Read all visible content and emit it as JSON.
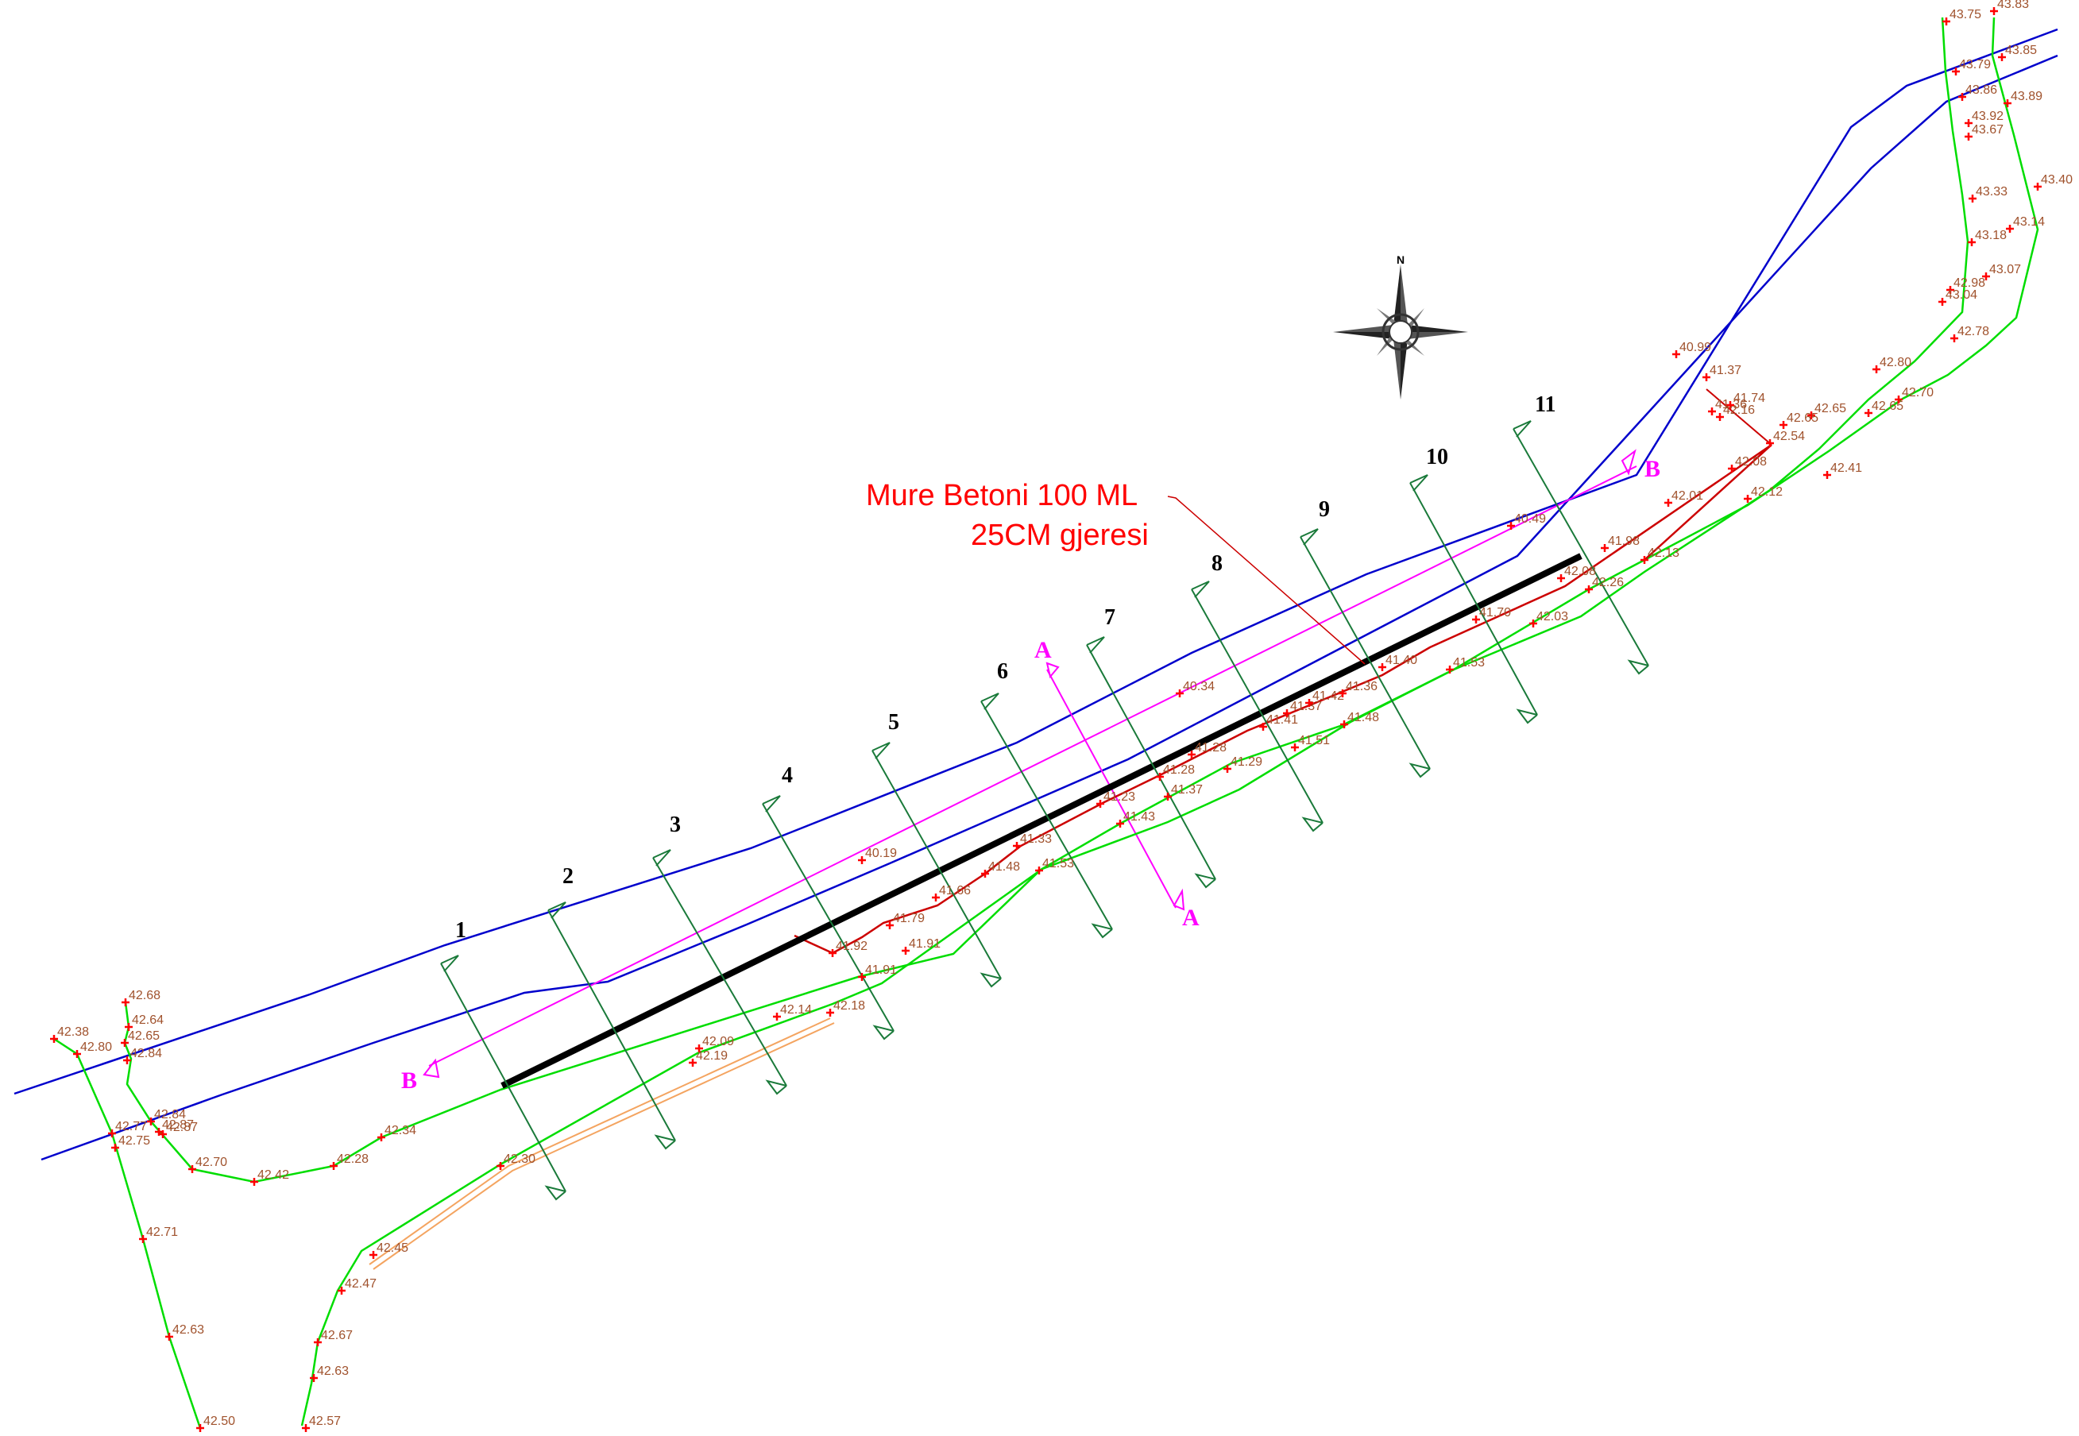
{
  "annotation": {
    "line1": "Mure Betoni 100 ML",
    "line2": "25CM gjeresi"
  },
  "compass": {
    "north_label": "N",
    "icon": "compass-rose-icon"
  },
  "sections": [
    "1",
    "2",
    "3",
    "4",
    "5",
    "6",
    "7",
    "8",
    "9",
    "10",
    "11"
  ],
  "section_cuts": {
    "a_label": "A",
    "b_label": "B"
  },
  "colors": {
    "channel": "#0000cc",
    "road": "#00dd00",
    "wall": "#000000",
    "existing": "#cc0000",
    "sections": "#1a7a3a",
    "cut": "#ff00ff",
    "elevation_text": "#a0522d",
    "note": "#ff0000"
  },
  "elevations": [
    "42.38",
    "42.80",
    "42.68",
    "42.64",
    "42.65",
    "42.84",
    "42.87",
    "42.77",
    "42.75",
    "42.84",
    "42.87",
    "42.70",
    "42.42",
    "42.28",
    "42.34",
    "42.71",
    "42.63",
    "42.50",
    "42.30",
    "42.45",
    "42.47",
    "42.67",
    "42.63",
    "42.57",
    "42.09",
    "42.19",
    "42.14",
    "42.18",
    "41.91",
    "41.91",
    "41.92",
    "41.79",
    "41.66",
    "41.48",
    "41.53",
    "41.33",
    "41.23",
    "41.43",
    "41.28",
    "41.37",
    "41.28",
    "41.29",
    "41.41",
    "41.51",
    "41.37",
    "41.42",
    "41.36",
    "41.48",
    "41.40",
    "41.53",
    "41.70",
    "42.03",
    "42.08",
    "42.26",
    "41.98",
    "42.13",
    "42.01",
    "42.08",
    "42.12",
    "42.41",
    "42.65",
    "42.54",
    "42.65",
    "42.16",
    "42.65",
    "42.70",
    "42.80",
    "42.78",
    "41.37",
    "41.74",
    "41.36",
    "40.99",
    "40.49",
    "40.34",
    "40.19",
    "43.75",
    "43.83",
    "43.79",
    "43.85",
    "43.86",
    "43.89",
    "43.92",
    "43.67",
    "43.40",
    "43.33",
    "43.18",
    "43.14",
    "43.07",
    "42.98",
    "43.04"
  ]
}
